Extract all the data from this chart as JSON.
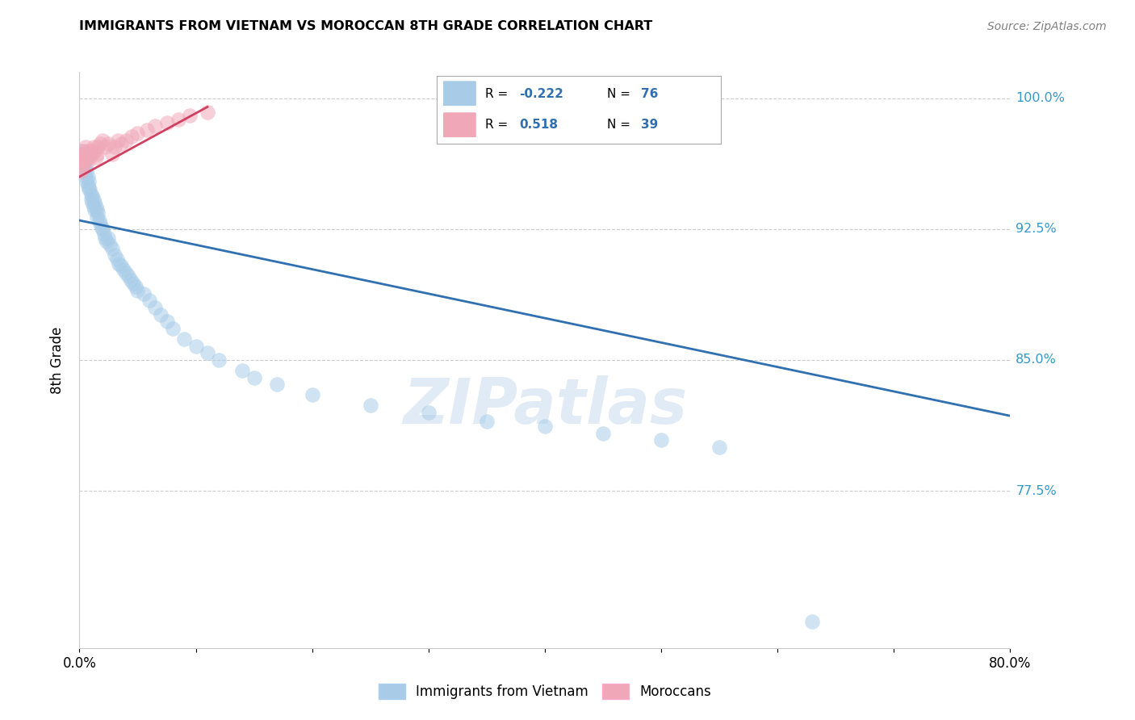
{
  "title": "IMMIGRANTS FROM VIETNAM VS MOROCCAN 8TH GRADE CORRELATION CHART",
  "source": "Source: ZipAtlas.com",
  "ylabel": "8th Grade",
  "watermark": "ZIPatlas",
  "legend_r1_label": "R = ",
  "legend_r1_val": "-0.222",
  "legend_n1_label": "N = ",
  "legend_n1_val": "76",
  "legend_r2_label": "R =  ",
  "legend_r2_val": "0.518",
  "legend_n2_label": "N = ",
  "legend_n2_val": "39",
  "blue_color": "#A8CCE8",
  "pink_color": "#F0A8B8",
  "blue_line_color": "#3070B0",
  "pink_line_color": "#D04060",
  "vietnam_scatter_x": [
    0.001,
    0.001,
    0.001,
    0.002,
    0.002,
    0.002,
    0.002,
    0.003,
    0.003,
    0.003,
    0.004,
    0.004,
    0.005,
    0.005,
    0.006,
    0.006,
    0.007,
    0.007,
    0.008,
    0.008,
    0.009,
    0.01,
    0.01,
    0.011,
    0.011,
    0.012,
    0.012,
    0.013,
    0.013,
    0.014,
    0.015,
    0.015,
    0.016,
    0.017,
    0.018,
    0.019,
    0.02,
    0.021,
    0.022,
    0.023,
    0.025,
    0.026,
    0.028,
    0.03,
    0.032,
    0.034,
    0.036,
    0.038,
    0.04,
    0.042,
    0.044,
    0.046,
    0.048,
    0.05,
    0.055,
    0.06,
    0.065,
    0.07,
    0.075,
    0.08,
    0.09,
    0.1,
    0.11,
    0.12,
    0.14,
    0.15,
    0.17,
    0.2,
    0.25,
    0.3,
    0.35,
    0.4,
    0.45,
    0.5,
    0.55,
    0.63
  ],
  "vietnam_scatter_y": [
    0.97,
    0.968,
    0.965,
    0.968,
    0.965,
    0.962,
    0.96,
    0.966,
    0.962,
    0.958,
    0.963,
    0.958,
    0.96,
    0.955,
    0.958,
    0.952,
    0.955,
    0.95,
    0.952,
    0.948,
    0.948,
    0.945,
    0.942,
    0.944,
    0.94,
    0.942,
    0.938,
    0.94,
    0.936,
    0.938,
    0.936,
    0.932,
    0.934,
    0.93,
    0.928,
    0.926,
    0.925,
    0.922,
    0.92,
    0.918,
    0.92,
    0.916,
    0.914,
    0.91,
    0.908,
    0.905,
    0.904,
    0.902,
    0.9,
    0.898,
    0.896,
    0.894,
    0.892,
    0.89,
    0.888,
    0.884,
    0.88,
    0.876,
    0.872,
    0.868,
    0.862,
    0.858,
    0.854,
    0.85,
    0.844,
    0.84,
    0.836,
    0.83,
    0.824,
    0.82,
    0.815,
    0.812,
    0.808,
    0.804,
    0.8,
    0.7
  ],
  "morocco_scatter_x": [
    0.001,
    0.001,
    0.002,
    0.002,
    0.003,
    0.003,
    0.004,
    0.004,
    0.005,
    0.005,
    0.006,
    0.007,
    0.007,
    0.008,
    0.009,
    0.01,
    0.011,
    0.012,
    0.013,
    0.014,
    0.015,
    0.016,
    0.018,
    0.02,
    0.022,
    0.025,
    0.028,
    0.03,
    0.033,
    0.036,
    0.04,
    0.045,
    0.05,
    0.058,
    0.065,
    0.075,
    0.085,
    0.095,
    0.11
  ],
  "morocco_scatter_y": [
    0.964,
    0.958,
    0.966,
    0.96,
    0.968,
    0.962,
    0.97,
    0.964,
    0.972,
    0.966,
    0.968,
    0.97,
    0.964,
    0.966,
    0.968,
    0.97,
    0.968,
    0.972,
    0.97,
    0.966,
    0.968,
    0.972,
    0.974,
    0.976,
    0.972,
    0.974,
    0.968,
    0.972,
    0.976,
    0.974,
    0.976,
    0.978,
    0.98,
    0.982,
    0.984,
    0.986,
    0.988,
    0.99,
    0.992
  ],
  "xlim": [
    0.0,
    0.8
  ],
  "ylim": [
    0.685,
    1.015
  ],
  "ytick_vals": [
    0.775,
    0.85,
    0.925,
    1.0
  ],
  "ytick_labels": [
    "77.5%",
    "85.0%",
    "92.5%",
    "100.0%"
  ],
  "xtick_vals": [
    0.0,
    0.1,
    0.2,
    0.3,
    0.4,
    0.5,
    0.6,
    0.7,
    0.8
  ],
  "xtick_labels": [
    "0.0%",
    "",
    "",
    "",
    "",
    "",
    "",
    "",
    "80.0%"
  ],
  "blue_trend_x": [
    0.0,
    0.8
  ],
  "blue_trend_y": [
    0.93,
    0.818
  ],
  "pink_trend_x": [
    0.0,
    0.11
  ],
  "pink_trend_y": [
    0.955,
    0.995
  ]
}
